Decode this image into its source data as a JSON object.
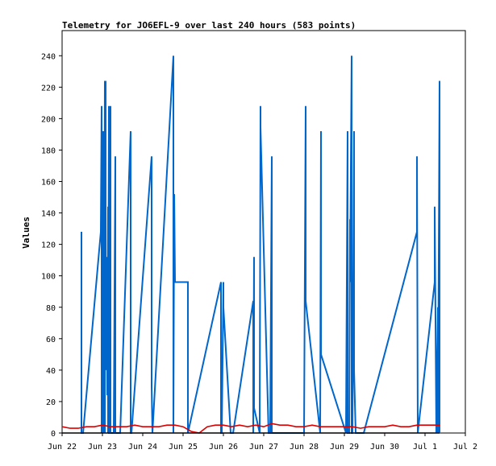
{
  "chart_data": {
    "type": "line",
    "title": "Telemetry for JO6EFL-9 over last 240 hours (583 points)",
    "xlabel": "",
    "ylabel": "Values",
    "x_ticks": [
      "Jun 22",
      "Jun 23",
      "Jun 24",
      "Jun 25",
      "Jun 26",
      "Jun 27",
      "Jun 28",
      "Jun 29",
      "Jun 30",
      "Jul 1",
      "Jul 2"
    ],
    "y_ticks": [
      "0",
      "20",
      "40",
      "60",
      "80",
      "100",
      "120",
      "140",
      "160",
      "180",
      "200",
      "220",
      "240"
    ],
    "xlim": [
      0,
      10
    ],
    "ylim": [
      0,
      256
    ],
    "grid": false,
    "legend": "none",
    "series": [
      {
        "color": "#0066cc",
        "x": [
          0.48,
          0.48,
          0.48,
          0.52,
          0.52,
          0.96,
          0.98,
          0.98,
          1.0,
          1.0,
          1.02,
          1.02,
          1.04,
          1.04,
          1.06,
          1.06,
          1.08,
          1.08,
          1.1,
          1.1,
          1.12,
          1.12,
          1.14,
          1.14,
          1.16,
          1.16,
          1.18,
          1.18,
          1.2,
          1.2,
          1.22,
          1.22,
          1.24,
          1.24,
          1.26,
          1.26,
          1.28,
          1.28,
          1.32,
          1.32,
          1.36,
          1.36,
          1.38,
          1.38,
          1.4,
          1.4,
          1.42,
          1.42,
          1.44,
          1.44,
          1.7,
          1.7,
          1.72,
          1.72,
          2.22,
          2.22,
          2.24,
          2.24,
          2.76,
          2.76,
          2.78,
          2.8,
          3.12,
          3.12,
          3.94,
          3.94,
          3.96,
          3.96,
          4.0,
          4.0,
          4.18,
          4.18,
          4.24,
          4.24,
          4.74,
          4.74,
          4.76,
          4.76,
          4.9,
          4.9,
          4.92,
          4.92,
          5.12,
          5.12,
          5.14,
          5.14,
          5.16,
          5.16,
          5.2,
          5.2,
          6.0,
          6.0,
          6.04,
          6.04,
          6.4,
          6.4,
          6.42,
          6.42,
          7.04,
          7.04,
          7.08,
          7.08,
          7.12,
          7.12,
          7.14,
          7.14,
          7.18,
          7.18,
          7.2,
          7.2,
          7.24,
          7.24,
          7.28,
          7.28,
          7.32,
          7.32,
          7.36,
          7.36,
          7.4,
          7.4,
          7.44,
          7.44,
          7.48,
          7.48,
          8.8,
          8.8,
          8.82,
          8.82,
          9.24,
          9.24,
          9.28,
          9.28,
          9.32,
          9.32,
          9.36,
          9.36
        ],
        "y": [
          128,
          0,
          0,
          0,
          0,
          128,
          208,
          0,
          160,
          24,
          192,
          0,
          96,
          40,
          224,
          0,
          224,
          50,
          112,
          40,
          80,
          24,
          144,
          0,
          208,
          0,
          0,
          0,
          208,
          0,
          0,
          0,
          0,
          0,
          0,
          0,
          0,
          0,
          176,
          0,
          0,
          0,
          0,
          0,
          0,
          0,
          0,
          0,
          0,
          0,
          192,
          0,
          0,
          0,
          176,
          30,
          0,
          0,
          240,
          0,
          152,
          96,
          96,
          0,
          96,
          0,
          0,
          0,
          96,
          80,
          0,
          0,
          0,
          0,
          84,
          0,
          112,
          16,
          0,
          0,
          208,
          195,
          0,
          0,
          0,
          0,
          0,
          0,
          176,
          0,
          0,
          0,
          208,
          84,
          0,
          0,
          192,
          50,
          0,
          0,
          192,
          0,
          0,
          0,
          136,
          96,
          240,
          0,
          0,
          0,
          192,
          40,
          0,
          0,
          0,
          0,
          0,
          0,
          0,
          0,
          0,
          0,
          0,
          0,
          128,
          176,
          0,
          0,
          96,
          144,
          0,
          0,
          80,
          0,
          224,
          0
        ]
      },
      {
        "color": "#dd0000",
        "x": [
          0.0,
          0.2,
          0.4,
          0.6,
          0.8,
          1.0,
          1.2,
          1.4,
          1.6,
          1.8,
          2.0,
          2.2,
          2.4,
          2.6,
          2.8,
          3.0,
          3.2,
          3.4,
          3.6,
          3.8,
          4.0,
          4.2,
          4.4,
          4.6,
          4.8,
          5.0,
          5.2,
          5.4,
          5.6,
          5.8,
          6.0,
          6.2,
          6.4,
          6.6,
          6.8,
          7.0,
          7.2,
          7.4,
          7.6,
          7.8,
          8.0,
          8.2,
          8.4,
          8.6,
          8.8,
          9.0,
          9.2,
          9.36
        ],
        "y": [
          4,
          3,
          3,
          4,
          4,
          5,
          4,
          4,
          4,
          5,
          4,
          4,
          4,
          5,
          5,
          4,
          1,
          0,
          4,
          5,
          5,
          4,
          5,
          4,
          5,
          4,
          6,
          5,
          5,
          4,
          4,
          5,
          4,
          4,
          4,
          4,
          4,
          3,
          4,
          4,
          4,
          5,
          4,
          4,
          5,
          5,
          5,
          5
        ]
      },
      {
        "color": "#000000",
        "x": [
          0.0,
          9.36
        ],
        "y": [
          0,
          0
        ]
      }
    ]
  }
}
